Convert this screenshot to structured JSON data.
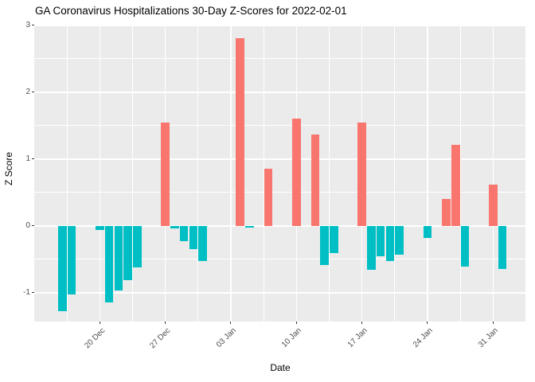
{
  "chart_data": {
    "type": "bar",
    "title": "GA Coronavirus Hospitalizations 30-Day Z-Scores for 2022-02-01",
    "xlabel": "Date",
    "ylabel": "Z Score",
    "x_start_date": "2021-12-16",
    "points": [
      [
        "2021-12-16",
        -1.27
      ],
      [
        "2021-12-17",
        -1.03
      ],
      [
        "2021-12-20",
        -0.06
      ],
      [
        "2021-12-21",
        -1.15
      ],
      [
        "2021-12-22",
        -0.96
      ],
      [
        "2021-12-23",
        -0.81
      ],
      [
        "2021-12-24",
        -0.62
      ],
      [
        "2021-12-27",
        1.54
      ],
      [
        "2021-12-28",
        -0.04
      ],
      [
        "2021-12-29",
        -0.23
      ],
      [
        "2021-12-30",
        -0.35
      ],
      [
        "2021-12-31",
        -0.53
      ],
      [
        "2022-01-04",
        2.81
      ],
      [
        "2022-01-05",
        -0.03
      ],
      [
        "2022-01-07",
        0.85
      ],
      [
        "2022-01-10",
        1.6
      ],
      [
        "2022-01-12",
        1.37
      ],
      [
        "2022-01-13",
        -0.59
      ],
      [
        "2022-01-14",
        -0.41
      ],
      [
        "2022-01-17",
        1.55
      ],
      [
        "2022-01-18",
        -0.66
      ],
      [
        "2022-01-19",
        -0.45
      ],
      [
        "2022-01-20",
        -0.52
      ],
      [
        "2022-01-21",
        -0.43
      ],
      [
        "2022-01-24",
        -0.18
      ],
      [
        "2022-01-26",
        0.4
      ],
      [
        "2022-01-27",
        1.21
      ],
      [
        "2022-01-28",
        -0.61
      ],
      [
        "2022-01-31",
        0.62
      ],
      [
        "2022-02-01",
        -0.64
      ]
    ],
    "x_ticks": [
      {
        "date": "2021-12-20",
        "label": "20 Dec"
      },
      {
        "date": "2021-12-27",
        "label": "27 Dec"
      },
      {
        "date": "2022-01-03",
        "label": "03 Jan"
      },
      {
        "date": "2022-01-10",
        "label": "10 Jan"
      },
      {
        "date": "2022-01-17",
        "label": "17 Jan"
      },
      {
        "date": "2022-01-24",
        "label": "24 Jan"
      },
      {
        "date": "2022-01-31",
        "label": "31 Jan"
      }
    ],
    "y_ticks": [
      -1,
      0,
      1,
      2,
      3
    ],
    "y_tick_labels": [
      "-1",
      "0",
      "1",
      "2",
      "3"
    ],
    "ylim": [
      -1.43,
      3.01
    ],
    "x_domain_days": [
      -3,
      49.55
    ],
    "positive_color": "#F8766D",
    "negative_color": "#00BFC4",
    "panel_bg": "#EBEBEB",
    "grid_color": "#FFFFFF",
    "axis_text_color": "#4D4D4D",
    "legend": "none",
    "grid": "major+minor"
  }
}
